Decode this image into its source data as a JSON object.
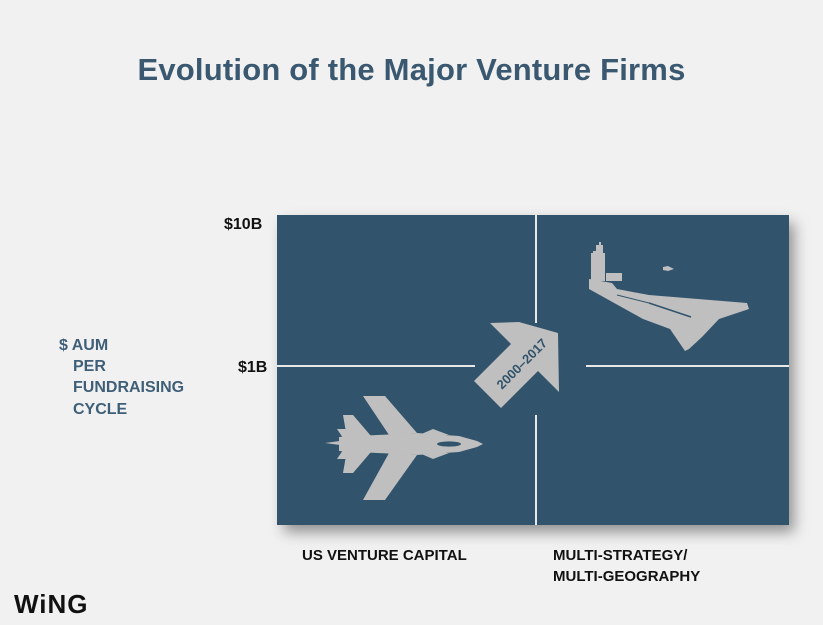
{
  "title": "Evolution of the Major Venture Firms",
  "y_axis_label": [
    "$ AUM",
    "PER",
    "FUNDRAISING",
    "CYCLE"
  ],
  "ticks": {
    "top": "$10B",
    "mid": "$1B"
  },
  "x_labels": {
    "left": "US VENTURE CAPITAL",
    "right_line1": "MULTI-STRATEGY/",
    "right_line2": "MULTI-GEOGRAPHY"
  },
  "arrow_label": "2000–2017",
  "logo": "WiNG",
  "colors": {
    "panel": "#31536b",
    "title": "#3a5870",
    "icon": "#bfbfbf"
  }
}
